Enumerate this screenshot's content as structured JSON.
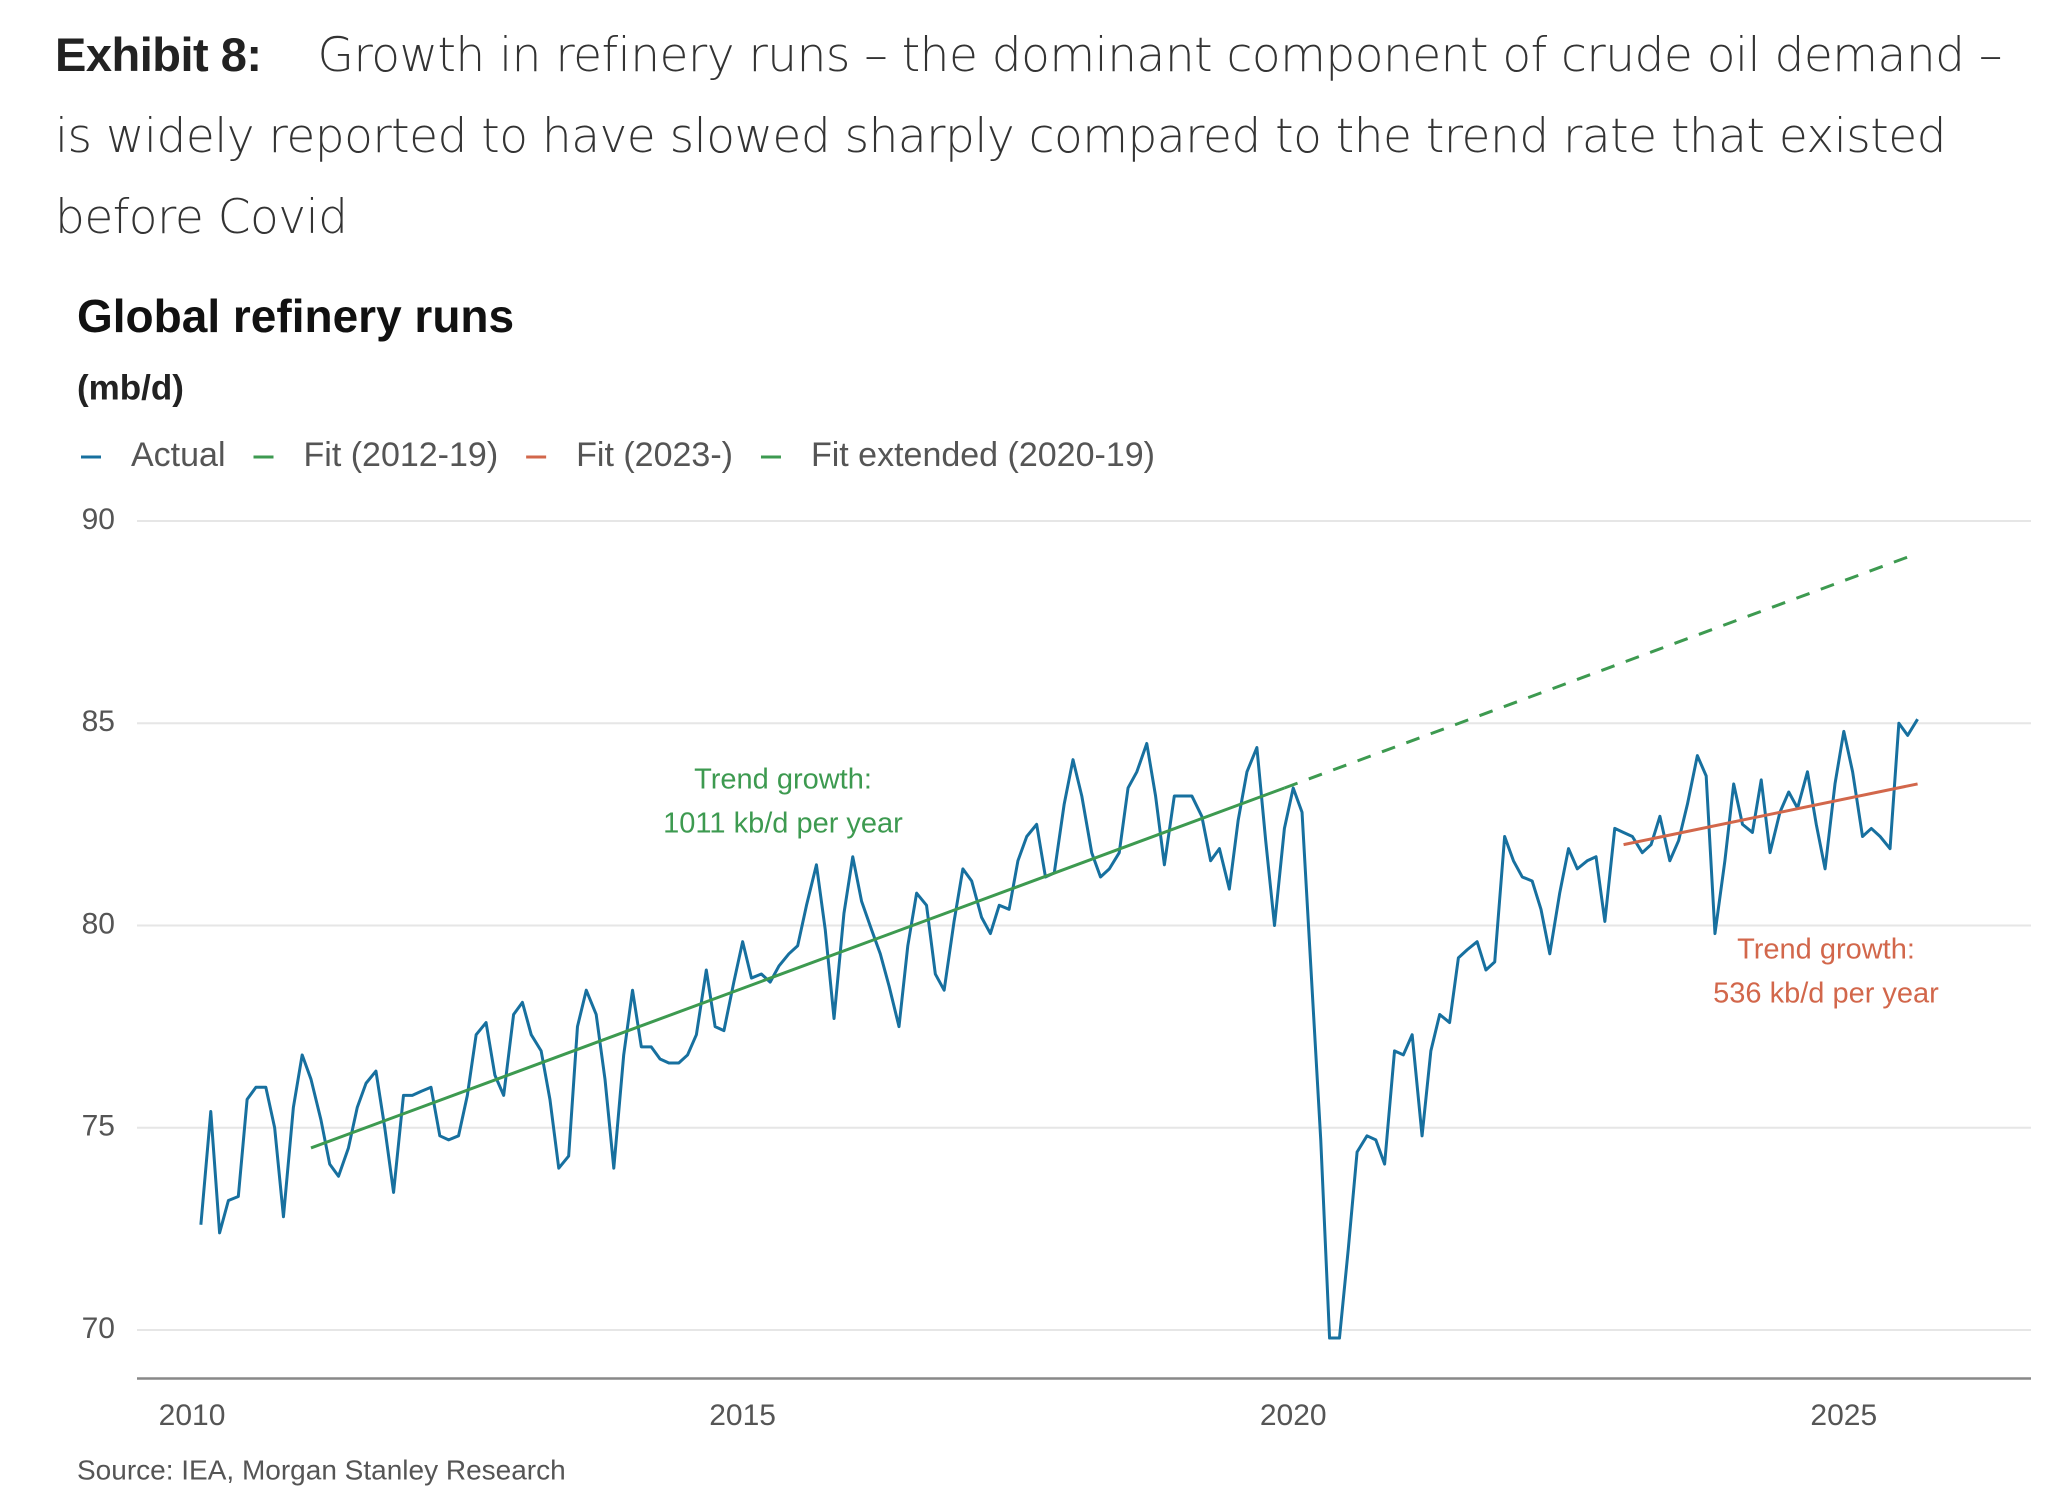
{
  "header": {
    "label": "Exhibit 8:",
    "text": "Growth in refinery runs – the dominant component of crude oil demand – is widely reported to have slowed sharply compared to the trend rate that existed before Covid"
  },
  "chart_data": {
    "type": "line",
    "title": "Global refinery runs",
    "subtitle": "(mb/d)",
    "source": "Source: IEA, Morgan Stanley Research",
    "annotations": [
      {
        "lines": [
          "Trend growth:",
          "1011 kb/d per year"
        ],
        "color": "#3d9a50"
      },
      {
        "lines": [
          "Trend growth:",
          "536 kb/d per year"
        ],
        "color": "#d2674b"
      }
    ],
    "xlim": [
      2009.5,
      2026.7
    ],
    "xticks": [
      2010,
      2015,
      2020,
      2025
    ],
    "ylim": [
      68.8,
      90.5
    ],
    "yticks": [
      70,
      75,
      80,
      85,
      90
    ],
    "grid": true,
    "series": [
      {
        "name": "Actual",
        "color": "#17709f",
        "dashed": false,
        "x": [
          2010.08,
          2010.17,
          2010.25,
          2010.33,
          2010.42,
          2010.5,
          2010.58,
          2010.67,
          2010.75,
          2010.83,
          2010.92,
          2011,
          2011.08,
          2011.17,
          2011.25,
          2011.33,
          2011.42,
          2011.5,
          2011.58,
          2011.67,
          2011.75,
          2011.83,
          2011.92,
          2012,
          2012.08,
          2012.17,
          2012.25,
          2012.33,
          2012.42,
          2012.5,
          2012.58,
          2012.67,
          2012.75,
          2012.83,
          2012.92,
          2013,
          2013.08,
          2013.17,
          2013.25,
          2013.33,
          2013.42,
          2013.5,
          2013.58,
          2013.67,
          2013.75,
          2013.83,
          2013.92,
          2014,
          2014.08,
          2014.17,
          2014.25,
          2014.33,
          2014.42,
          2014.5,
          2014.58,
          2014.67,
          2014.75,
          2014.83,
          2014.92,
          2015,
          2015.08,
          2015.17,
          2015.25,
          2015.33,
          2015.42,
          2015.5,
          2015.58,
          2015.67,
          2015.75,
          2015.83,
          2015.92,
          2016,
          2016.08,
          2016.17,
          2016.25,
          2016.33,
          2016.42,
          2016.5,
          2016.58,
          2016.67,
          2016.75,
          2016.83,
          2016.92,
          2017,
          2017.08,
          2017.17,
          2017.25,
          2017.33,
          2017.42,
          2017.5,
          2017.58,
          2017.67,
          2017.75,
          2017.83,
          2017.92,
          2018,
          2018.08,
          2018.17,
          2018.25,
          2018.33,
          2018.42,
          2018.5,
          2018.58,
          2018.67,
          2018.75,
          2018.83,
          2018.92,
          2019,
          2019.08,
          2019.17,
          2019.25,
          2019.33,
          2019.42,
          2019.5,
          2019.58,
          2019.67,
          2019.75,
          2019.83,
          2019.92,
          2020,
          2020.08,
          2020.17,
          2020.25,
          2020.33,
          2020.42,
          2020.5,
          2020.58,
          2020.67,
          2020.75,
          2020.83,
          2020.92,
          2021,
          2021.08,
          2021.17,
          2021.25,
          2021.33,
          2021.42,
          2021.5,
          2021.58,
          2021.67,
          2021.75,
          2021.83,
          2021.92,
          2022,
          2022.08,
          2022.17,
          2022.25,
          2022.33,
          2022.42,
          2022.5,
          2022.58,
          2022.67,
          2022.75,
          2022.83,
          2022.92,
          2023,
          2023.08,
          2023.17,
          2023.25,
          2023.33,
          2023.42,
          2023.5,
          2023.58,
          2023.67,
          2023.75,
          2023.83,
          2023.92,
          2024,
          2024.08,
          2024.17,
          2024.25,
          2024.33,
          2024.42,
          2024.5,
          2024.58,
          2024.67,
          2024.75,
          2024.83,
          2024.92,
          2025,
          2025.08,
          2025.17,
          2025.25,
          2025.33,
          2025.42,
          2025.5,
          2025.58,
          2025.67
        ],
        "values": [
          72.6,
          75.4,
          72.4,
          73.2,
          73.3,
          75.7,
          76,
          76,
          75,
          72.8,
          75.5,
          76.8,
          76.2,
          75.2,
          74.1,
          73.8,
          74.5,
          75.5,
          76.1,
          76.4,
          75,
          73.4,
          75.8,
          75.8,
          75.9,
          76,
          74.8,
          74.7,
          74.8,
          75.8,
          77.3,
          77.6,
          76.3,
          75.8,
          77.8,
          78.1,
          77.3,
          76.9,
          75.7,
          74,
          74.3,
          77.5,
          78.4,
          77.8,
          76.2,
          74,
          76.8,
          78.4,
          77,
          77,
          76.7,
          76.6,
          76.6,
          76.8,
          77.3,
          78.9,
          77.5,
          77.4,
          78.6,
          79.6,
          78.7,
          78.8,
          78.6,
          79,
          79.3,
          79.5,
          80.5,
          81.5,
          79.9,
          77.7,
          80.3,
          81.7,
          80.6,
          79.9,
          79.3,
          78.5,
          77.5,
          79.5,
          80.8,
          80.5,
          78.8,
          78.4,
          80.1,
          81.4,
          81.1,
          80.2,
          79.8,
          80.5,
          80.4,
          81.6,
          82.2,
          82.5,
          81.2,
          81.3,
          83,
          84.1,
          83.2,
          81.8,
          81.2,
          81.4,
          81.8,
          83.4,
          83.8,
          84.5,
          83.2,
          81.5,
          83.2,
          83.2,
          83.2,
          82.7,
          81.6,
          81.9,
          80.9,
          82.6,
          83.8,
          84.4,
          82.1,
          80,
          82.4,
          83.4,
          82.8,
          78.5,
          74.7,
          69.8,
          69.8,
          72,
          74.4,
          74.8,
          74.7,
          74.1,
          76.9,
          76.8,
          77.3,
          74.8,
          76.9,
          77.8,
          77.6,
          79.2,
          79.4,
          79.6,
          78.9,
          79.1,
          82.2,
          81.6,
          81.2,
          81.1,
          80.4,
          79.3,
          80.8,
          81.9,
          81.4,
          81.6,
          81.7,
          80.1,
          82.4,
          82.3,
          82.2,
          81.8,
          82,
          82.7,
          81.6,
          82.1,
          83,
          84.2,
          83.7,
          79.8,
          81.6,
          83.5,
          82.5,
          82.3,
          83.6,
          81.8,
          82.8,
          83.3,
          82.9,
          83.8,
          82.5,
          81.4,
          83.5,
          84.8,
          83.8,
          82.2,
          82.4,
          82.2,
          81.9,
          85,
          84.7,
          85.1
        ]
      },
      {
        "name": "Fit (2012-19)",
        "color": "#3d9a50",
        "dashed": false,
        "x": [
          2011.08,
          2019.92
        ],
        "values": [
          74.5,
          83.4
        ]
      },
      {
        "name": "Fit (2023-)",
        "color": "#d2674b",
        "dashed": false,
        "x": [
          2023,
          2025.67
        ],
        "values": [
          82,
          83.5
        ]
      },
      {
        "name": "Fit extended (2020-19)",
        "color": "#3d9a50",
        "dashed": true,
        "x": [
          2019.92,
          2025.67
        ],
        "values": [
          83.4,
          89.2
        ]
      }
    ]
  }
}
